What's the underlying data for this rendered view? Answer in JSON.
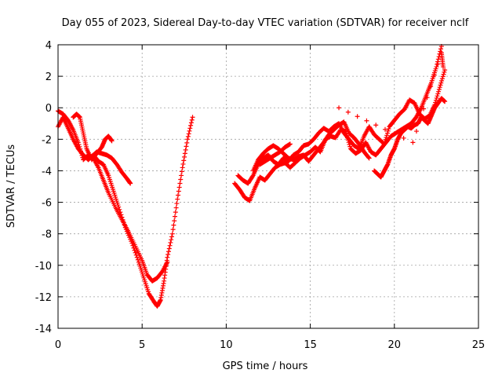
{
  "chart_data": {
    "type": "scatter",
    "title": "Day 055 of 2023, Sidereal Day-to-day VTEC variation (SDTVAR) for receiver nclf",
    "xlabel": "GPS time / hours",
    "ylabel": "SDTVAR / TECUs",
    "xlim": [
      0,
      25
    ],
    "ylim": [
      -14,
      4
    ],
    "xticks": [
      0,
      5,
      10,
      15,
      20,
      25
    ],
    "yticks": [
      -14,
      -12,
      -10,
      -8,
      -6,
      -4,
      -2,
      0,
      2,
      4
    ],
    "grid": true,
    "marker": "plus",
    "color": "#ff0000",
    "series": [
      {
        "x": [
          0.0,
          0.3,
          0.6,
          0.9,
          1.2,
          1.5,
          1.8,
          2.1,
          2.4,
          2.7,
          3.0,
          3.3,
          3.6,
          4.0,
          4.4,
          4.8,
          5.1,
          5.4,
          5.7,
          5.9,
          6.1,
          6.3,
          6.5,
          6.8,
          7.1,
          7.4,
          7.7,
          8.0
        ],
        "y": [
          -1.2,
          -0.6,
          -1.3,
          -2.0,
          -2.6,
          -3.0,
          -3.3,
          -3.0,
          -3.4,
          -3.6,
          -4.3,
          -5.3,
          -6.3,
          -7.6,
          -8.6,
          -9.8,
          -10.8,
          -11.8,
          -12.3,
          -12.6,
          -12.2,
          -11.0,
          -9.5,
          -8.0,
          -5.8,
          -3.8,
          -2.0,
          -0.6
        ]
      },
      {
        "x": [
          0.0,
          0.3,
          0.6,
          0.9,
          1.2,
          1.5,
          1.8,
          2.1,
          2.4,
          2.7,
          3.0,
          3.4,
          3.8,
          4.2,
          4.6,
          5.0,
          5.3,
          5.6,
          5.9,
          6.2,
          6.5
        ],
        "y": [
          -0.2,
          -0.4,
          -0.8,
          -1.4,
          -2.2,
          -3.3,
          -3.0,
          -3.2,
          -3.8,
          -4.6,
          -5.4,
          -6.3,
          -7.1,
          -7.9,
          -8.8,
          -9.7,
          -10.6,
          -11.0,
          -10.8,
          -10.4,
          -9.8
        ]
      },
      {
        "x": [
          0.9,
          1.1,
          1.3,
          1.5,
          1.7,
          2.0,
          2.3,
          2.6,
          2.8,
          3.0,
          3.2
        ],
        "y": [
          -0.6,
          -0.4,
          -0.6,
          -1.6,
          -2.6,
          -3.3,
          -2.9,
          -2.5,
          -2.0,
          -1.8,
          -2.1
        ]
      },
      {
        "x": [
          2.0,
          2.3,
          2.6,
          2.9,
          3.2,
          3.5,
          3.8,
          4.1,
          4.3
        ],
        "y": [
          -3.1,
          -2.8,
          -2.9,
          -3.0,
          -3.2,
          -3.6,
          -4.1,
          -4.5,
          -4.8
        ]
      },
      {
        "x": [
          10.5,
          10.8,
          11.1,
          11.4,
          11.7,
          12.0,
          12.3,
          12.6,
          12.9,
          13.2,
          13.5,
          13.8,
          14.1,
          14.4,
          14.7,
          15.0,
          15.3,
          15.6,
          15.9,
          16.2,
          16.5,
          16.8,
          17.1,
          17.4,
          17.7,
          18.0,
          18.3,
          18.6,
          18.9,
          19.2,
          19.5,
          19.8,
          20.1,
          20.4,
          20.7,
          21.0,
          21.3,
          21.6,
          21.9,
          22.2,
          22.5,
          22.8
        ],
        "y": [
          -4.8,
          -5.2,
          -5.7,
          -5.9,
          -5.1,
          -4.4,
          -4.6,
          -4.2,
          -3.8,
          -3.6,
          -3.5,
          -3.8,
          -3.5,
          -3.2,
          -3.0,
          -2.8,
          -2.5,
          -2.8,
          -2.0,
          -1.8,
          -1.9,
          -1.4,
          -1.5,
          -2.6,
          -2.9,
          -2.7,
          -2.2,
          -2.8,
          -3.0,
          -2.6,
          -2.2,
          -1.8,
          -1.6,
          -1.4,
          -1.2,
          -1.0,
          -0.6,
          0.0,
          0.8,
          1.6,
          2.6,
          3.9
        ]
      },
      {
        "x": [
          10.7,
          11.0,
          11.3,
          11.6,
          11.9,
          12.2,
          12.5,
          12.8,
          13.1,
          13.4,
          13.7,
          14.0,
          14.3,
          14.6,
          14.9,
          15.2,
          15.5,
          15.8,
          16.1,
          16.4,
          16.7,
          17.0,
          17.3,
          17.6,
          17.9,
          18.2,
          18.5,
          18.8,
          19.1,
          19.4,
          19.7,
          20.0,
          20.3,
          20.6,
          20.9,
          21.2,
          21.5,
          21.8,
          22.1,
          22.4,
          22.7,
          23.0
        ],
        "y": [
          -4.3,
          -4.6,
          -4.8,
          -4.3,
          -3.6,
          -3.2,
          -3.0,
          -3.4,
          -3.6,
          -3.2,
          -3.4,
          -3.0,
          -2.8,
          -2.4,
          -2.3,
          -2.0,
          -1.6,
          -1.3,
          -1.5,
          -1.2,
          -1.0,
          -1.6,
          -2.0,
          -2.4,
          -2.6,
          -1.8,
          -1.2,
          -1.7,
          -2.0,
          -2.3,
          -1.2,
          -0.8,
          -0.4,
          -0.1,
          0.5,
          0.3,
          -0.4,
          -0.7,
          -0.5,
          0.2,
          1.3,
          2.4
        ]
      },
      {
        "x": [
          11.6,
          11.9,
          12.2,
          12.5,
          12.8,
          13.1,
          13.4,
          13.7,
          14.0,
          14.3,
          14.6,
          14.9,
          15.2,
          15.5,
          15.8,
          16.1,
          16.4,
          16.7,
          17.0,
          17.3,
          17.6,
          17.9,
          18.2,
          18.5
        ],
        "y": [
          -4.0,
          -3.3,
          -2.9,
          -2.6,
          -2.4,
          -2.6,
          -2.9,
          -3.2,
          -3.3,
          -3.1,
          -3.0,
          -3.4,
          -3.0,
          -2.6,
          -2.2,
          -1.7,
          -1.4,
          -1.1,
          -0.9,
          -1.6,
          -1.9,
          -2.3,
          -2.8,
          -3.2
        ]
      },
      {
        "x": [
          12.0,
          12.3,
          12.6,
          12.9,
          13.2,
          13.5,
          13.8
        ],
        "y": [
          -3.6,
          -3.4,
          -3.2,
          -3.0,
          -2.8,
          -2.5,
          -2.3
        ]
      },
      {
        "x": [
          18.8,
          19.0,
          19.2,
          19.4,
          19.6,
          19.8,
          20.0,
          20.2,
          20.4,
          20.6,
          20.8,
          21.0,
          21.2,
          21.4,
          21.6,
          21.8,
          22.0,
          22.2,
          22.4,
          22.6,
          22.8,
          23.0
        ],
        "y": [
          -4.0,
          -4.2,
          -4.4,
          -4.0,
          -3.6,
          -3.0,
          -2.6,
          -2.0,
          -1.6,
          -1.4,
          -1.2,
          -1.3,
          -1.1,
          -1.0,
          -0.6,
          -0.8,
          -1.0,
          -0.5,
          0.0,
          0.3,
          0.6,
          0.4
        ]
      },
      {
        "x": [
          16.7,
          21.1,
          22.8,
          22.9
        ],
        "y": [
          0.0,
          -2.2,
          3.5,
          2.6
        ]
      }
    ]
  }
}
